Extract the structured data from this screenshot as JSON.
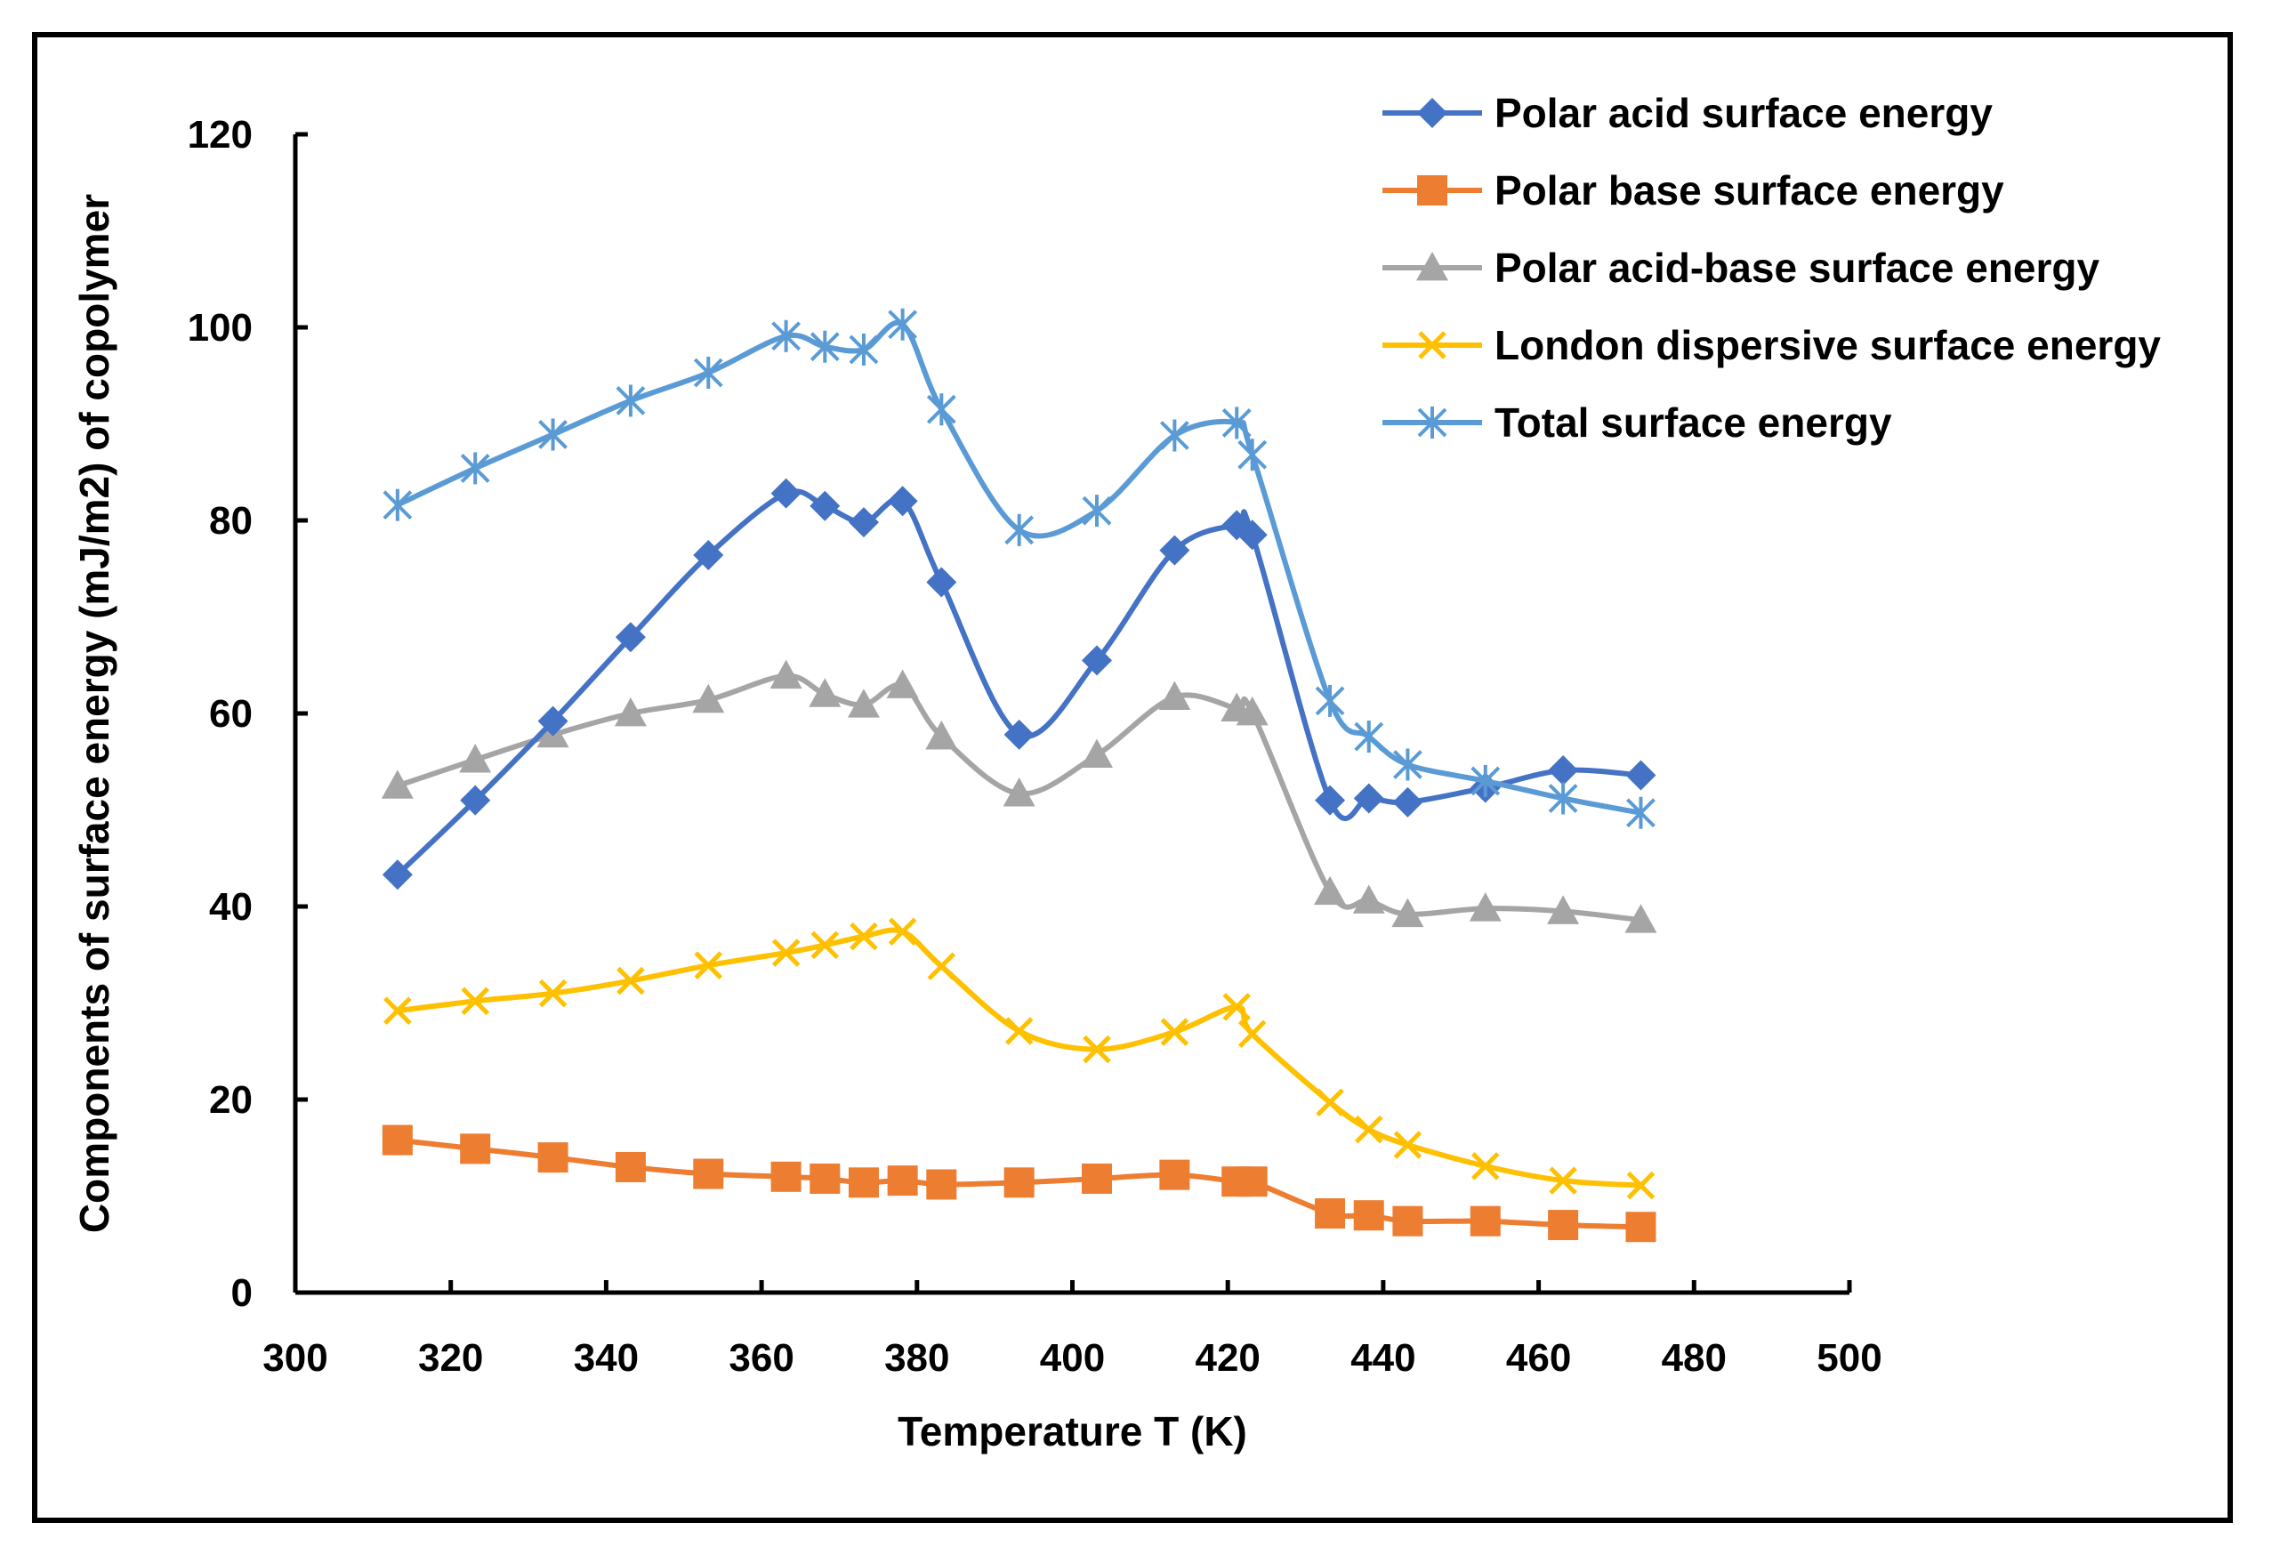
{
  "chart_data": {
    "type": "line",
    "title": "",
    "xlabel": "Temperature T (K)",
    "ylabel": "Components of surface energy (mJ/m2) of copolymer",
    "xlim": [
      300,
      500
    ],
    "ylim": [
      0,
      120
    ],
    "xticks": [
      300,
      320,
      340,
      360,
      380,
      400,
      420,
      440,
      460,
      480,
      500
    ],
    "yticks": [
      0,
      20,
      40,
      60,
      80,
      100,
      120
    ],
    "grid": false,
    "legend_position": "top-right",
    "smooth": true,
    "x": [
      313.15,
      323.15,
      333.15,
      343.15,
      353.15,
      363.15,
      368.15,
      373.15,
      378.15,
      383.15,
      393.15,
      403.15,
      413.15,
      421.15,
      423.15,
      433.15,
      438.15,
      443.15,
      453.15,
      463.15,
      473.15
    ],
    "series": [
      {
        "name": "Polar acid surface energy",
        "color": "#4472C4",
        "marker": "diamond",
        "values": [
          43.3,
          51.0,
          59.2,
          67.9,
          76.4,
          82.8,
          81.5,
          79.8,
          82.0,
          73.6,
          57.8,
          65.5,
          76.9,
          79.5,
          78.5,
          51.0,
          51.2,
          50.8,
          52.3,
          54.1,
          53.6
        ]
      },
      {
        "name": "Polar base surface energy",
        "color": "#ED7D31",
        "marker": "square",
        "values": [
          15.8,
          14.9,
          14.0,
          13.0,
          12.3,
          12.0,
          11.8,
          11.4,
          11.6,
          11.2,
          11.4,
          11.8,
          12.2,
          11.5,
          11.5,
          8.2,
          8.0,
          7.4,
          7.4,
          7.0,
          6.8
        ]
      },
      {
        "name": "Polar acid-base surface energy",
        "color": "#A5A5A5",
        "marker": "triangle",
        "values": [
          52.5,
          55.2,
          57.8,
          60.0,
          61.4,
          63.9,
          62.0,
          60.9,
          62.9,
          57.6,
          51.7,
          55.7,
          61.7,
          60.5,
          60.1,
          41.5,
          40.6,
          39.2,
          39.8,
          39.5,
          38.6
        ]
      },
      {
        "name": "London dispersive surface energy",
        "color": "#FFC000",
        "marker": "x",
        "values": [
          29.2,
          30.2,
          31.0,
          32.3,
          33.9,
          35.2,
          36.0,
          36.9,
          37.4,
          33.8,
          27.1,
          25.2,
          27.0,
          29.6,
          26.8,
          19.7,
          16.9,
          15.3,
          13.1,
          11.6,
          11.1
        ]
      },
      {
        "name": "Total surface energy",
        "color": "#5B9BD5",
        "marker": "asterisk",
        "values": [
          81.6,
          85.4,
          88.9,
          92.4,
          95.3,
          99.1,
          98.0,
          97.7,
          100.3,
          91.5,
          79.0,
          81.0,
          88.8,
          90.1,
          86.8,
          61.3,
          57.6,
          54.7,
          53.0,
          51.2,
          49.7
        ]
      }
    ]
  }
}
